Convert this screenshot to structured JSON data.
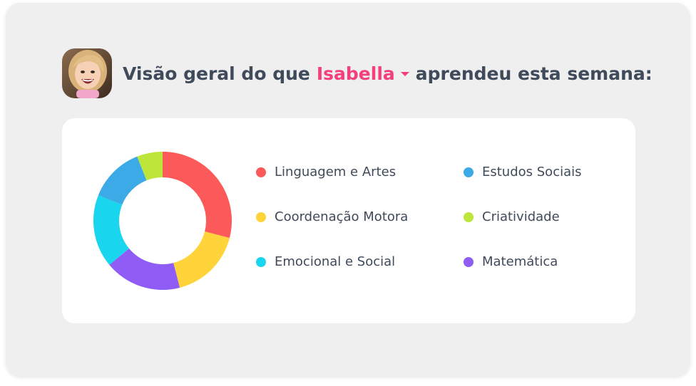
{
  "header": {
    "title_before": "Visão geral do que",
    "child_name": "Isabella",
    "title_after": "aprendeu esta semana:"
  },
  "chart_data": {
    "type": "pie",
    "donut": true,
    "categories": [
      "Linguagem e Artes",
      "Coordenação Motora",
      "Emocional e Social",
      "Estudos Sociais",
      "Criatividade",
      "Matemática"
    ],
    "slices": [
      {
        "label": "Linguagem e Artes",
        "value": 29,
        "color": "#fc5a5a"
      },
      {
        "label": "Coordenação Motora",
        "value": 17,
        "color": "#ffd43b"
      },
      {
        "label": "Matemática",
        "value": 18,
        "color": "#8f5cf5"
      },
      {
        "label": "Emocional e Social",
        "value": 17,
        "color": "#19d6ee"
      },
      {
        "label": "Estudos Sociais",
        "value": 13,
        "color": "#3baae6"
      },
      {
        "label": "Criatividade",
        "value": 6,
        "color": "#bde53a"
      }
    ],
    "legend": [
      {
        "label": "Linguagem e Artes",
        "color": "#fc5a5a"
      },
      {
        "label": "Estudos Sociais",
        "color": "#3baae6"
      },
      {
        "label": "Coordenação Motora",
        "color": "#ffd43b"
      },
      {
        "label": "Criatividade",
        "color": "#bde53a"
      },
      {
        "label": "Emocional e Social",
        "color": "#19d6ee"
      },
      {
        "label": "Matemática",
        "color": "#8f5cf5"
      }
    ],
    "legend_placement": "right"
  }
}
